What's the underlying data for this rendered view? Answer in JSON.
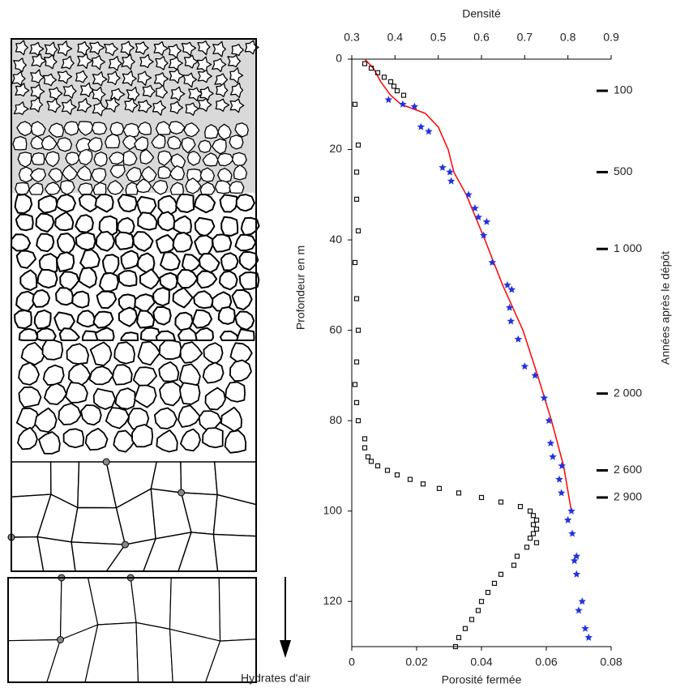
{
  "chart_data": {
    "type": "scatter",
    "x2label": "Densité",
    "xlabel": "Porosité fermée",
    "ylabel": "Profondeur en m",
    "y2label": "Années après le dépôt",
    "caption": "Hydrates d'air",
    "x2lim": [
      0.3,
      0.9
    ],
    "x2ticks": [
      0.3,
      0.4,
      0.5,
      0.6,
      0.7,
      0.8,
      0.9
    ],
    "xlim": [
      0,
      0.08
    ],
    "xticks": [
      0,
      0.02,
      0.04,
      0.06,
      0.08
    ],
    "ylim": [
      130,
      0
    ],
    "yticks": [
      0,
      20,
      40,
      60,
      80,
      100,
      120
    ],
    "age_markers": [
      {
        "depth": 7,
        "value": 100,
        "label": "100"
      },
      {
        "depth": 25,
        "value": 500,
        "label": "500"
      },
      {
        "depth": 42,
        "value": 1000,
        "label": "1 000"
      },
      {
        "depth": 74,
        "value": 2000,
        "label": "2 000"
      },
      {
        "depth": 91,
        "value": 2600,
        "label": "2 600"
      },
      {
        "depth": 97,
        "value": 2900,
        "label": "2 900"
      }
    ],
    "series": [
      {
        "axis": "x2",
        "marker": "line",
        "color": "#ff0000",
        "x": [
          0.33,
          0.35,
          0.367,
          0.39,
          0.414,
          0.47,
          0.5,
          0.523,
          0.536,
          0.565,
          0.608,
          0.649,
          0.696,
          0.73,
          0.762,
          0.79,
          0.808
        ],
        "values": [
          0,
          2,
          5,
          8,
          10,
          12,
          15,
          20,
          25,
          30,
          40,
          50,
          60,
          70,
          80,
          90,
          100
        ]
      },
      {
        "axis": "x2",
        "marker": "star",
        "color": "#2233dd",
        "x": [
          0.385,
          0.418,
          0.445,
          0.46,
          0.478,
          0.51,
          0.527,
          0.53,
          0.57,
          0.585,
          0.593,
          0.612,
          0.605,
          0.625,
          0.66,
          0.67,
          0.665,
          0.668,
          0.685,
          0.7,
          0.724,
          0.745,
          0.756,
          0.76,
          0.765,
          0.786,
          0.78,
          0.785,
          0.808,
          0.8,
          0.81,
          0.82,
          0.815,
          0.82,
          0.833,
          0.825,
          0.84,
          0.848
        ],
        "values": [
          9,
          10,
          10.5,
          15,
          16,
          24,
          25,
          27,
          30,
          33,
          35,
          36,
          39,
          45,
          50,
          51,
          55,
          58,
          62,
          68,
          70,
          75,
          80,
          85,
          88,
          90,
          93,
          96,
          100,
          102,
          105,
          110,
          111,
          114,
          120,
          122,
          126,
          128
        ]
      },
      {
        "axis": "x",
        "marker": "square",
        "color": "#111111",
        "x": [
          0.004,
          0.006,
          0.008,
          0.01,
          0.012,
          0.013,
          0.014,
          0.016,
          0.001,
          0.002,
          0.0015,
          0.0015,
          0.002,
          0.001,
          0.0015,
          0.002,
          0.0015,
          0.001,
          0.0015,
          0.002,
          0.004,
          0.004,
          0.005,
          0.006,
          0.008,
          0.011,
          0.014,
          0.018,
          0.022,
          0.027,
          0.033,
          0.04,
          0.046,
          0.052,
          0.055,
          0.056,
          0.057,
          0.056,
          0.057,
          0.056,
          0.055,
          0.057,
          0.054,
          0.051,
          0.05,
          0.046,
          0.044,
          0.042,
          0.04,
          0.039,
          0.037,
          0.035,
          0.033,
          0.032
        ],
        "values": [
          1,
          2,
          3,
          4,
          5,
          6,
          7,
          8,
          10,
          19,
          25,
          31,
          38,
          45,
          53,
          60,
          67,
          72,
          76,
          80,
          84,
          86,
          88,
          89,
          90,
          91,
          92,
          93,
          94,
          95,
          96,
          97,
          98,
          99,
          100,
          101,
          102,
          103,
          104,
          105,
          106,
          107,
          108,
          110,
          112,
          114,
          116,
          118,
          120,
          122,
          124,
          126,
          128,
          130
        ]
      }
    ]
  }
}
